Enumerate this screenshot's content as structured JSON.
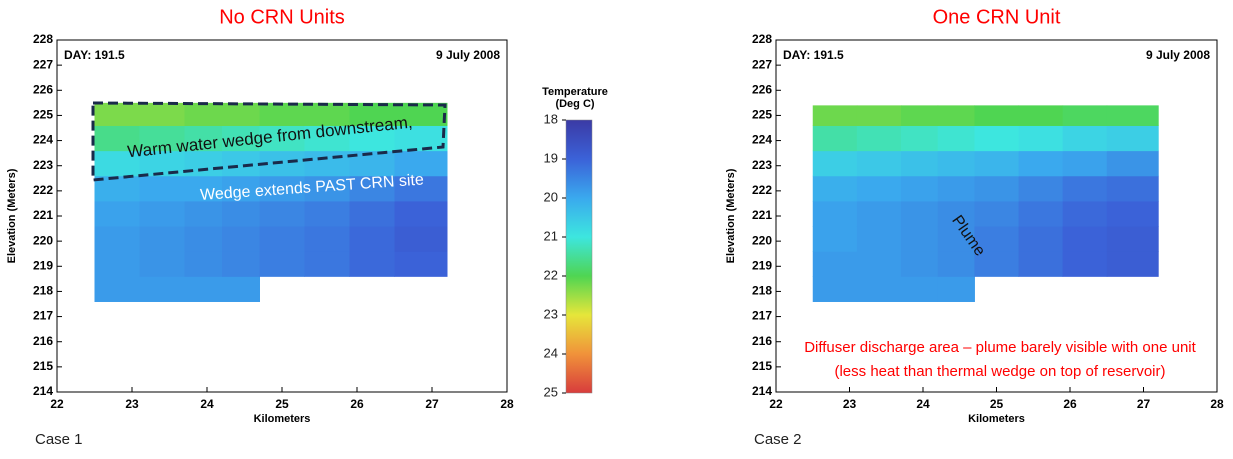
{
  "chart_data": [
    {
      "type": "heatmap",
      "title": "No CRN Units",
      "caption": "Case 1",
      "day_label": "DAY: 191.5",
      "date_label": "9 July 2008",
      "xlabel": "Kilometers",
      "ylabel": "Elevation (Meters)",
      "xlim": [
        22,
        28
      ],
      "xticks": [
        22,
        23,
        24,
        25,
        26,
        27,
        28
      ],
      "ylim": [
        214,
        228
      ],
      "yticks": [
        214,
        215,
        216,
        217,
        218,
        219,
        220,
        221,
        222,
        223,
        224,
        225,
        226,
        227,
        228
      ],
      "x_bins": [
        22.5,
        23.1,
        23.7,
        24.2,
        24.7,
        25.3,
        25.9,
        26.5,
        27.2
      ],
      "y_bins": [
        217.6,
        218.6,
        219.6,
        220.6,
        221.6,
        222.6,
        223.6,
        224.6,
        225.5
      ],
      "values": [
        [
          19.8,
          19.8,
          19.8,
          19.8,
          null,
          null,
          null,
          null
        ],
        [
          19.8,
          19.7,
          19.6,
          19.5,
          19.4,
          19.3,
          19.1,
          19.0
        ],
        [
          19.8,
          19.7,
          19.6,
          19.5,
          19.4,
          19.3,
          19.1,
          18.9
        ],
        [
          19.9,
          19.8,
          19.7,
          19.6,
          19.5,
          19.4,
          19.2,
          19.0
        ],
        [
          20.1,
          20.0,
          20.0,
          19.9,
          19.8,
          19.7,
          19.5,
          19.3
        ],
        [
          20.8,
          20.7,
          20.6,
          20.5,
          20.4,
          20.3,
          20.2,
          20.0
        ],
        [
          21.6,
          21.5,
          21.4,
          21.3,
          21.2,
          21.1,
          21.0,
          20.9
        ],
        [
          22.3,
          22.3,
          22.2,
          22.2,
          22.1,
          22.1,
          22.0,
          22.0
        ]
      ],
      "annotations": [
        "Warm water wedge from downstream,",
        "Wedge extends PAST CRN site"
      ]
    },
    {
      "type": "heatmap",
      "title": "One CRN Unit",
      "caption": "Case 2",
      "day_label": "DAY: 191.5",
      "date_label": "9 July 2008",
      "xlabel": "Kilometers",
      "ylabel": "Elevation (Meters)",
      "xlim": [
        22,
        28
      ],
      "xticks": [
        22,
        23,
        24,
        25,
        26,
        27,
        28
      ],
      "ylim": [
        214,
        228
      ],
      "yticks": [
        214,
        215,
        216,
        217,
        218,
        219,
        220,
        221,
        222,
        223,
        224,
        225,
        226,
        227,
        228
      ],
      "x_bins": [
        22.5,
        23.1,
        23.7,
        24.2,
        24.7,
        25.3,
        25.9,
        26.5,
        27.2
      ],
      "y_bins": [
        217.6,
        218.6,
        219.6,
        220.6,
        221.6,
        222.6,
        223.6,
        224.6,
        225.4
      ],
      "values": [
        [
          19.8,
          19.8,
          19.8,
          19.8,
          null,
          null,
          null,
          null
        ],
        [
          19.8,
          19.8,
          19.7,
          19.6,
          19.4,
          19.2,
          19.0,
          18.9
        ],
        [
          19.9,
          19.8,
          19.7,
          19.6,
          19.4,
          19.2,
          19.0,
          18.9
        ],
        [
          19.9,
          19.8,
          19.7,
          19.6,
          19.5,
          19.3,
          19.1,
          19.0
        ],
        [
          20.1,
          20.0,
          19.9,
          19.8,
          19.7,
          19.5,
          19.3,
          19.2
        ],
        [
          20.6,
          20.5,
          20.4,
          20.3,
          20.2,
          20.0,
          19.9,
          19.7
        ],
        [
          21.4,
          21.3,
          21.2,
          21.1,
          21.0,
          20.9,
          20.7,
          20.6
        ],
        [
          22.2,
          22.2,
          22.1,
          22.1,
          22.0,
          22.0,
          21.9,
          21.9
        ]
      ],
      "annotations": [
        "Plume",
        "Diffuser discharge area – plume barely visible with one unit",
        "(less heat than thermal wedge on top of reservoir)"
      ]
    },
    {
      "type": "colorbar",
      "title": [
        "Temperature",
        "(Deg C)"
      ],
      "lim": [
        18,
        25
      ],
      "ticks": [
        18,
        19,
        20,
        21,
        22,
        23,
        24,
        25
      ],
      "colors": [
        "#3b3aa5",
        "#3b62d8",
        "#3aa9ee",
        "#3de6df",
        "#4fd552",
        "#e6e63a",
        "#f0923a",
        "#d83c3c"
      ]
    }
  ]
}
